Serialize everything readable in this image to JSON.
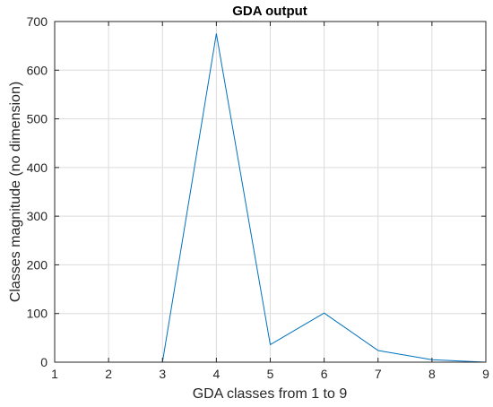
{
  "chart_data": {
    "type": "line",
    "title": "GDA output",
    "xlabel": "GDA classes from 1 to 9",
    "ylabel": "Classes magnitude (no dimension)",
    "xlim": [
      1,
      9
    ],
    "ylim": [
      0,
      700
    ],
    "xticks": [
      1,
      2,
      3,
      4,
      5,
      6,
      7,
      8,
      9
    ],
    "yticks": [
      0,
      100,
      200,
      300,
      400,
      500,
      600,
      700
    ],
    "grid": true,
    "series": [
      {
        "color": "#0072BD",
        "x": [
          1,
          2,
          3,
          4,
          5,
          6,
          7,
          8,
          9
        ],
        "y": [
          0,
          0,
          0,
          675,
          36,
          101,
          24,
          5,
          0
        ]
      }
    ]
  }
}
